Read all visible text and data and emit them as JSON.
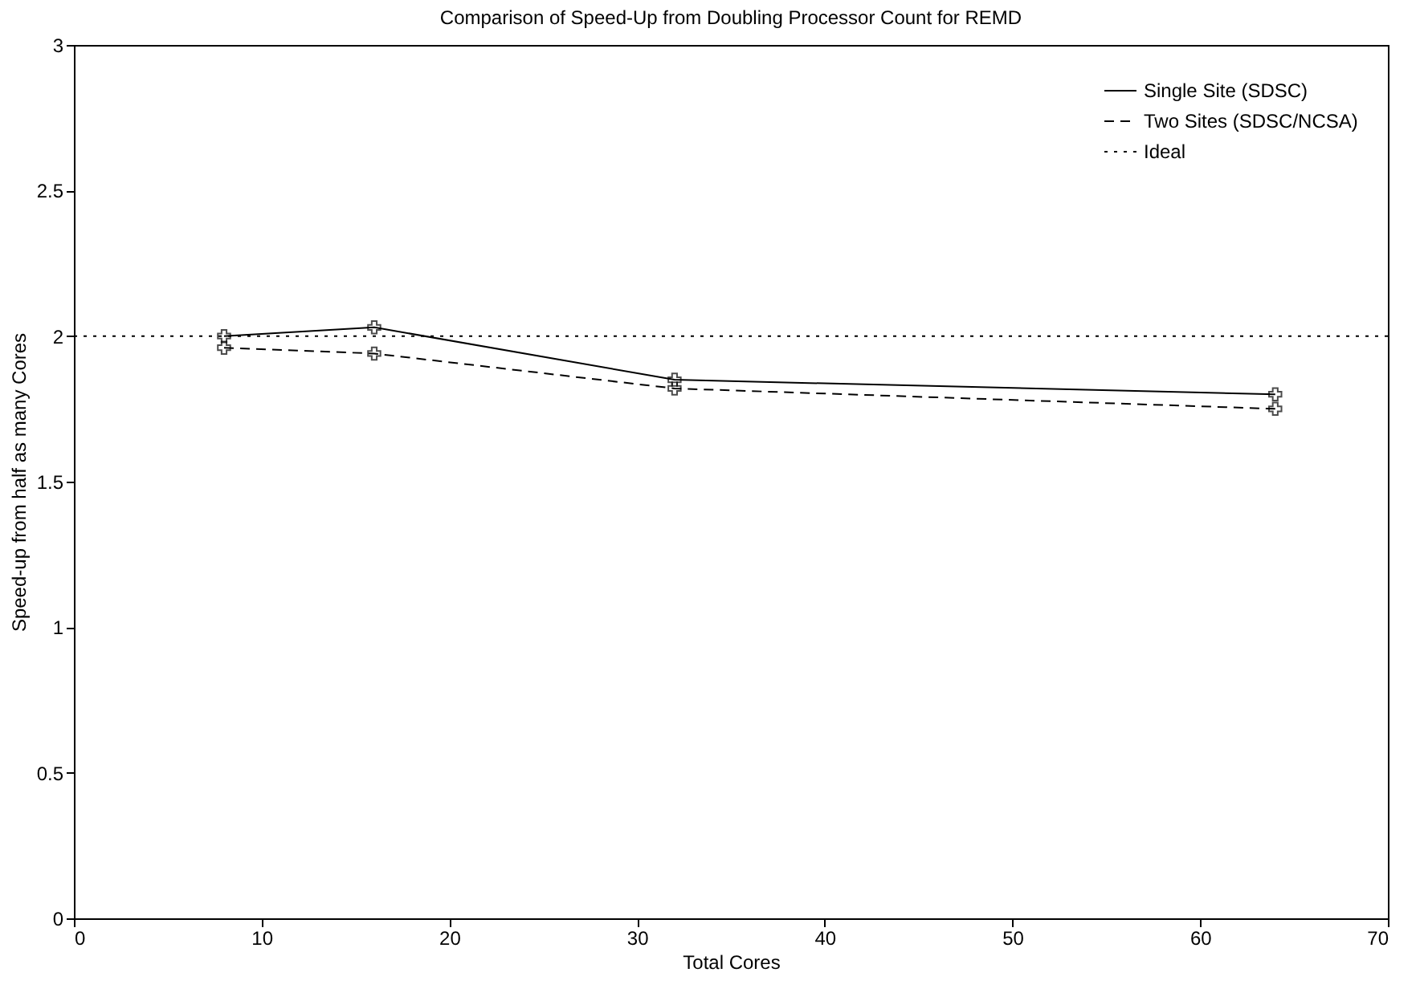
{
  "chart_data": {
    "type": "line",
    "title": "Comparison of Speed-Up from Doubling Processor Count for REMD",
    "xlabel": "Total Cores",
    "ylabel": "Speed-up from half as many Cores",
    "x": [
      8,
      16,
      32,
      64
    ],
    "series": [
      {
        "name": "Single Site (SDSC)",
        "color": "#000000",
        "values": [
          2.0,
          2.03,
          1.85,
          1.8
        ],
        "line_style": "solid",
        "marker": "cross"
      },
      {
        "name": "Two Sites (SDSC/NCSA)",
        "color": "#000000",
        "values": [
          1.96,
          1.94,
          1.82,
          1.75
        ],
        "line_style": "dashed",
        "marker": "cross"
      }
    ],
    "ref_lines": [
      {
        "axis": "y",
        "value": 2,
        "label": "Ideal",
        "color": "#000000",
        "line_style": "dotted"
      }
    ],
    "xlim": [
      0,
      70
    ],
    "xticks": [
      0,
      10,
      20,
      30,
      40,
      50,
      60,
      70
    ],
    "ylim": [
      0,
      3
    ],
    "yticks": [
      0,
      0.5,
      1,
      1.5,
      2,
      2.5,
      3
    ],
    "grid": false,
    "legend": "top right"
  }
}
